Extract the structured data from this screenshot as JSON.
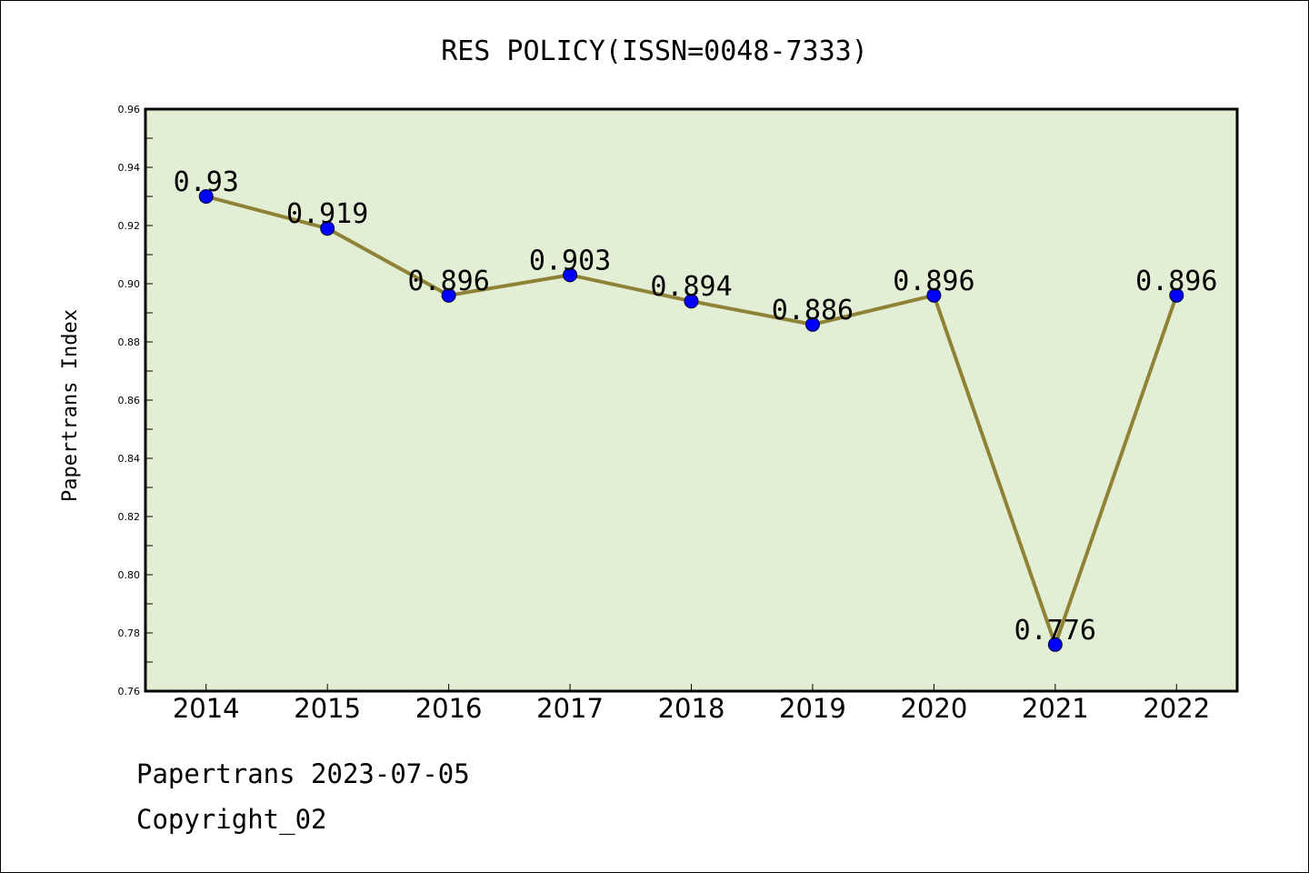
{
  "chart_data": {
    "type": "line",
    "title": "RES POLICY(ISSN=0048-7333)",
    "xlabel": "",
    "ylabel": "Papertrans Index",
    "categories": [
      "2014",
      "2015",
      "2016",
      "2017",
      "2018",
      "2019",
      "2020",
      "2021",
      "2022"
    ],
    "series": [
      {
        "values": [
          0.93,
          0.919,
          0.896,
          0.903,
          0.894,
          0.886,
          0.896,
          0.776,
          0.896
        ]
      }
    ],
    "data_labels": [
      "0.93",
      "0.919",
      "0.896",
      "0.903",
      "0.894",
      "0.886",
      "0.896",
      "0.776",
      "0.896"
    ],
    "ylim": [
      0.76,
      0.96
    ],
    "yticks": [
      "0.76",
      "0.78",
      "0.80",
      "0.82",
      "0.84",
      "0.86",
      "0.88",
      "0.90",
      "0.92",
      "0.94",
      "0.96"
    ],
    "grid": false,
    "colors": {
      "plot_background": "#e2efd5",
      "line": "#8f8237",
      "marker": "#0000ff"
    }
  },
  "footer": {
    "line1": "Papertrans 2023-07-05",
    "line2": "Copyright_02"
  }
}
